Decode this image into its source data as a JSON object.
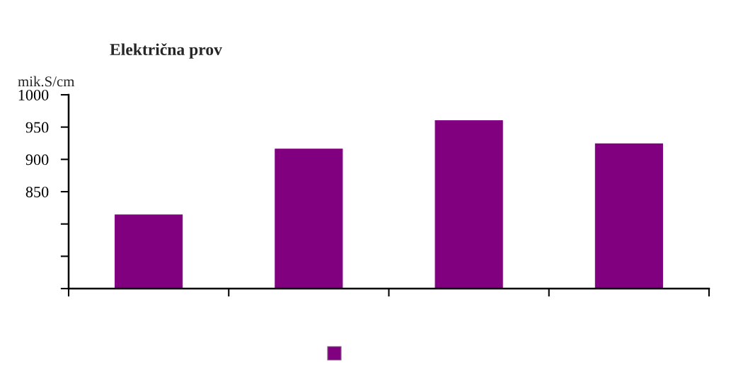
{
  "chart_data": {
    "type": "bar",
    "title": "Električna prov",
    "ylabel": "mik.S/cm",
    "categories": [
      null,
      null,
      null,
      null
    ],
    "series": [
      {
        "color": "#800080",
        "values": [
          814,
          916,
          960,
          924
        ]
      }
    ],
    "ylim": [
      700,
      1000
    ],
    "yticks": [
      {
        "value": 700,
        "label": null
      },
      {
        "value": 750,
        "label": null
      },
      {
        "value": 800,
        "label": null
      },
      850,
      900,
      950,
      1000
    ],
    "grid": false,
    "legend": false
  }
}
